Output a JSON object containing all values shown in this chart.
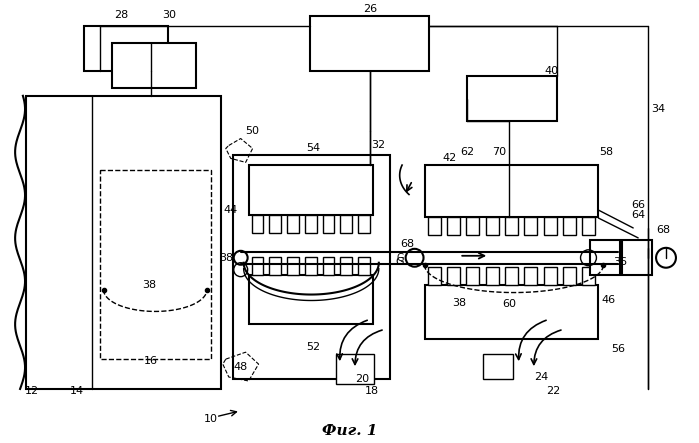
{
  "title": "Фиг. 1",
  "bg": "#ffffff",
  "lw": 1.0,
  "lw2": 1.5,
  "fig_w": 6.99,
  "fig_h": 4.43,
  "dpi": 100
}
